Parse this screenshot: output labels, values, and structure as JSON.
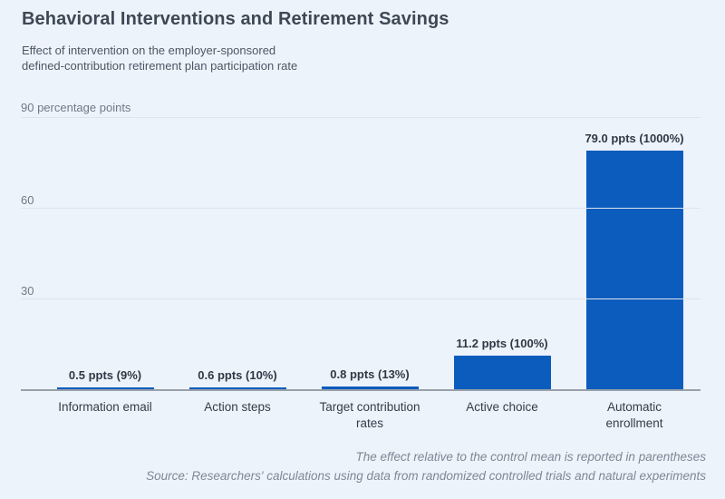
{
  "page": {
    "background": "#edf3fb"
  },
  "chart_data": {
    "type": "bar",
    "title": "Behavioral Interventions and Retirement Savings",
    "subtitle": "Effect of intervention on the employer-sponsored\ndefined-contribution retirement plan participation rate",
    "y_axis_top_label": "90 percentage points",
    "ylabel": "percentage points",
    "xlabel": "",
    "ylim": [
      0,
      90
    ],
    "yticks": [
      {
        "value": 90,
        "label": ""
      },
      {
        "value": 60,
        "label": "60"
      },
      {
        "value": 30,
        "label": "30"
      }
    ],
    "grid": true,
    "legend_position": "none",
    "bar_color": "#0b5cbd",
    "categories": [
      "Information email",
      "Action steps",
      "Target contribution rates",
      "Active choice",
      "Automatic enrollment"
    ],
    "xtick_labels": [
      "Information email",
      "Action steps",
      "Target contribution\nrates",
      "Active choice",
      "Automatic\nenrollment"
    ],
    "values": [
      0.5,
      0.6,
      0.8,
      11.2,
      79.0
    ],
    "value_labels": [
      "0.5 ppts (9%)",
      "0.6 ppts (10%)",
      "0.8 ppts (13%)",
      "11.2 ppts (100%)",
      "79.0 ppts (1000%)"
    ]
  },
  "footer": {
    "note": "The effect relative to the control mean is reported in parentheses",
    "source": "Source: Researchers' calculations using data from randomized controlled trials and natural experiments"
  }
}
